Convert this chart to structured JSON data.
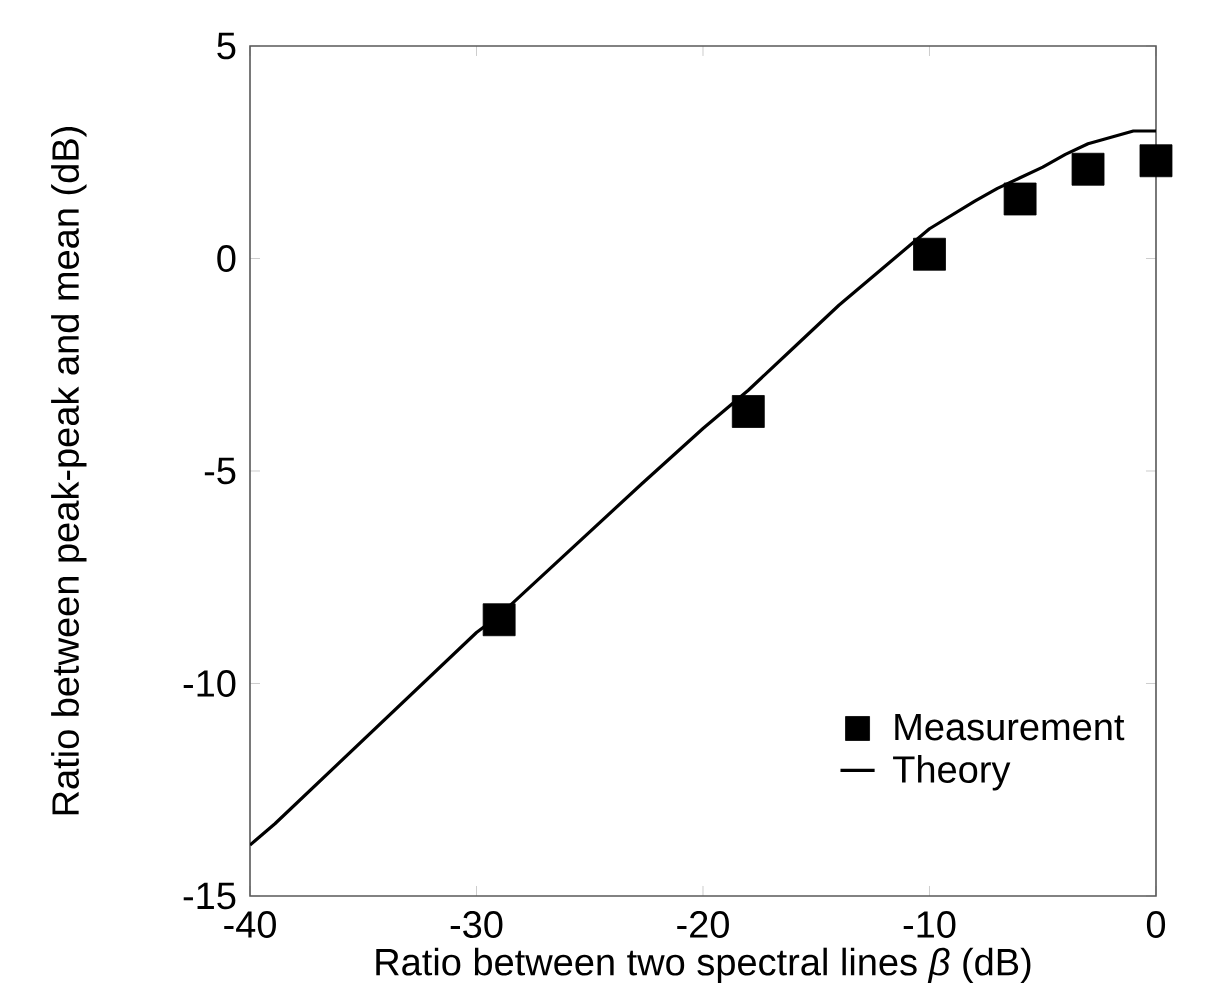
{
  "chart_data": {
    "type": "line",
    "xlabel": "Ratio between two spectral lines *β* (dB)",
    "ylabel": "Ratio between peak-peak and mean (dB)",
    "xlim": [
      -40,
      0
    ],
    "ylim": [
      -15,
      5
    ],
    "xticks": [
      -40,
      -30,
      -20,
      -10,
      0
    ],
    "yticks": [
      -15,
      -10,
      -5,
      0,
      5
    ],
    "grid": false,
    "legend": "bottom right",
    "series": [
      {
        "name": "Measurement",
        "type": "scatter",
        "marker": "square",
        "color": "#000000",
        "x": [
          -29,
          -18,
          -10,
          -6,
          -3,
          0
        ],
        "values": [
          -8.5,
          -3.6,
          0.1,
          1.4,
          2.1,
          2.3
        ]
      },
      {
        "name": "Theory",
        "marker": "none",
        "line_style": "solid",
        "color": "#000000",
        "x": [
          -40,
          -38.9,
          -30,
          -29,
          -22.7,
          -20,
          -18,
          -16,
          -14,
          -12,
          -10,
          -8,
          -7,
          -6,
          -5,
          -4,
          -3,
          -2,
          -1,
          0
        ],
        "values": [
          -13.8,
          -13.3,
          -8.8,
          -8.4,
          -5.3,
          -4.0,
          -3.1,
          -2.1,
          -1.1,
          -0.2,
          0.7,
          1.35,
          1.65,
          1.9,
          2.15,
          2.45,
          2.7,
          2.85,
          3.0,
          3.0
        ]
      }
    ]
  }
}
